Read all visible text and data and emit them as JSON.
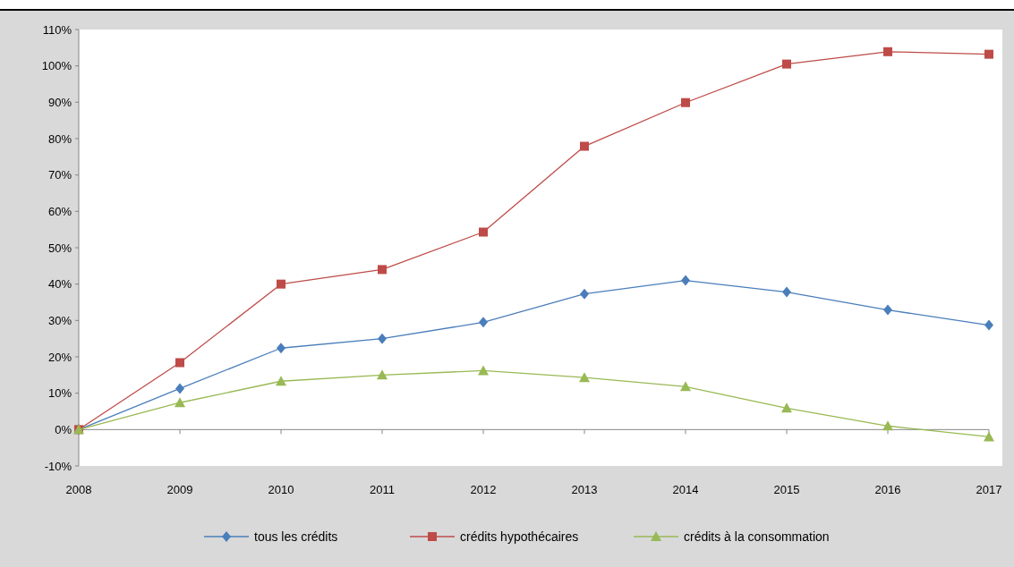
{
  "chart_data": {
    "type": "line",
    "x": [
      2008,
      2009,
      2010,
      2011,
      2012,
      2013,
      2014,
      2015,
      2016,
      2017
    ],
    "xlim": [
      2008,
      2017
    ],
    "xticks": [
      2008,
      2009,
      2010,
      2011,
      2012,
      2013,
      2014,
      2015,
      2016,
      2017
    ],
    "ylim": [
      -10,
      110
    ],
    "yticks": [
      {
        "value": -10,
        "label": "-10%"
      },
      {
        "value": 0,
        "label": "0%"
      },
      {
        "value": 10,
        "label": "10%"
      },
      {
        "value": 20,
        "label": "20%"
      },
      {
        "value": 30,
        "label": "30%"
      },
      {
        "value": 40,
        "label": "40%"
      },
      {
        "value": 50,
        "label": "50%"
      },
      {
        "value": 60,
        "label": "60%"
      },
      {
        "value": 70,
        "label": "70%"
      },
      {
        "value": 80,
        "label": "80%"
      },
      {
        "value": 90,
        "label": "90%"
      },
      {
        "value": 100,
        "label": "100%"
      },
      {
        "value": 110,
        "label": "110%"
      }
    ],
    "legend": "bottom",
    "series": [
      {
        "name": "tous les crédits",
        "color": "#4a7ebb",
        "marker": "diamond",
        "values": [
          0,
          11.3,
          22.4,
          25.0,
          29.5,
          37.3,
          41.0,
          37.8,
          32.9,
          28.7
        ]
      },
      {
        "name": "crédits hypothécaires",
        "color": "#be4b48",
        "marker": "square",
        "values": [
          0,
          18.4,
          40.0,
          44.0,
          54.3,
          77.9,
          89.9,
          100.5,
          103.9,
          103.2
        ]
      },
      {
        "name": "crédits à la consommation",
        "color": "#98b954",
        "marker": "triangle",
        "values": [
          0,
          7.4,
          13.3,
          15.0,
          16.2,
          14.3,
          11.8,
          5.9,
          1.0,
          -2.0
        ]
      }
    ]
  }
}
